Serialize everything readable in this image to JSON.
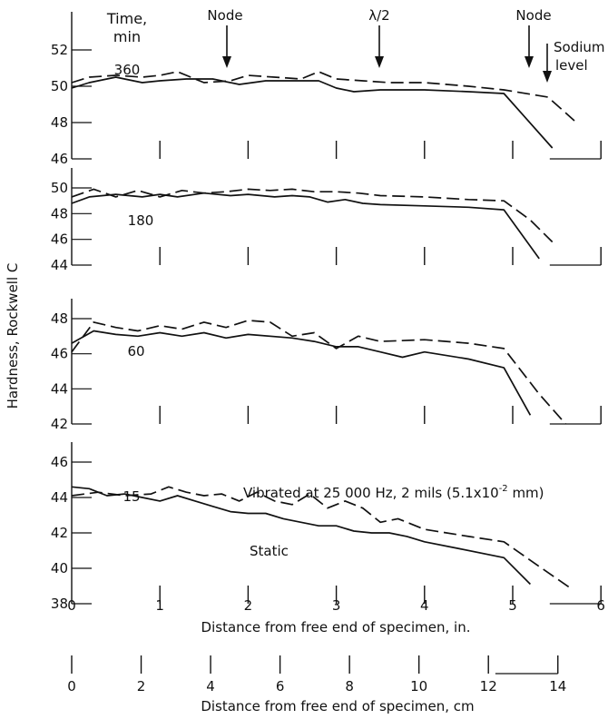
{
  "ylabel": "Hardness, Rockwell C",
  "xlabel_in": "Distance from free end of specimen, in.",
  "xlabel_cm": "Distance from free end of specimen, cm",
  "x_ticks_in": [
    "0",
    "1",
    "2",
    "3",
    "4",
    "5",
    "6"
  ],
  "x_ticks_cm": [
    "0",
    "2",
    "4",
    "6",
    "8",
    "10",
    "12",
    "14"
  ],
  "header": {
    "time_label_line1": "Time,",
    "time_label_line2": "min",
    "node_left": "Node",
    "half_wavelength": "λ/2",
    "node_right": "Node",
    "sodium_line1": "Sodium",
    "sodium_line2": "level"
  },
  "annotations": {
    "vibrated_prefix": "Vibrated at 25 000 Hz, 2 mils (5.1x10",
    "vibrated_exp": "-2",
    "vibrated_suffix": " mm)",
    "static": "Static"
  },
  "colors": {
    "ink": "#111111",
    "background": "#ffffff"
  },
  "chart_data": [
    {
      "type": "line",
      "time_label": "360",
      "ylim": [
        46,
        53
      ],
      "yticks": [
        "46",
        "48",
        "50",
        "52"
      ],
      "series": [
        {
          "name": "Static",
          "style": "solid",
          "x": [
            0,
            0.2,
            0.5,
            0.8,
            1.0,
            1.3,
            1.6,
            1.9,
            2.2,
            2.5,
            2.8,
            3.0,
            3.2,
            3.5,
            4.0,
            4.5,
            4.9,
            5.45
          ],
          "y": [
            49.9,
            50.2,
            50.5,
            50.2,
            50.3,
            50.4,
            50.4,
            50.1,
            50.3,
            50.3,
            50.3,
            49.9,
            49.7,
            49.8,
            49.8,
            49.7,
            49.6,
            46.6
          ]
        },
        {
          "name": "Vibrated at 25 000 Hz, 2 mils (5.1x10-2 mm)",
          "style": "dashed",
          "x": [
            0,
            0.2,
            0.5,
            0.8,
            1.0,
            1.2,
            1.5,
            1.8,
            2.0,
            2.3,
            2.6,
            2.8,
            3.0,
            3.3,
            3.6,
            4.0,
            4.5,
            4.9,
            5.4,
            5.7
          ],
          "y": [
            50.2,
            50.5,
            50.6,
            50.5,
            50.6,
            50.8,
            50.2,
            50.3,
            50.6,
            50.5,
            50.4,
            50.8,
            50.4,
            50.3,
            50.2,
            50.2,
            50.0,
            49.8,
            49.4,
            48.1
          ]
        }
      ]
    },
    {
      "type": "line",
      "time_label": "180",
      "ylim": [
        44,
        50
      ],
      "yticks": [
        "44",
        "46",
        "48",
        "50"
      ],
      "series": [
        {
          "name": "Static",
          "style": "solid",
          "x": [
            0,
            0.2,
            0.5,
            0.8,
            1.0,
            1.2,
            1.5,
            1.8,
            2.0,
            2.3,
            2.5,
            2.7,
            2.9,
            3.1,
            3.3,
            3.5,
            4.0,
            4.5,
            4.9,
            5.3
          ],
          "y": [
            48.8,
            49.3,
            49.5,
            49.3,
            49.5,
            49.3,
            49.6,
            49.4,
            49.5,
            49.3,
            49.4,
            49.3,
            48.9,
            49.1,
            48.8,
            48.7,
            48.6,
            48.5,
            48.3,
            44.5
          ]
        },
        {
          "name": "Vibrated at 25 000 Hz, 2 mils (5.1x10-2 mm)",
          "style": "dashed",
          "x": [
            0,
            0.25,
            0.5,
            0.75,
            1.0,
            1.25,
            1.5,
            1.75,
            2.0,
            2.25,
            2.5,
            2.75,
            3.0,
            3.25,
            3.5,
            4.0,
            4.5,
            4.9,
            5.2,
            5.45
          ],
          "y": [
            49.3,
            49.9,
            49.3,
            49.8,
            49.3,
            49.8,
            49.6,
            49.7,
            49.9,
            49.8,
            49.9,
            49.7,
            49.7,
            49.6,
            49.4,
            49.3,
            49.1,
            49.0,
            47.5,
            45.8
          ]
        }
      ]
    },
    {
      "type": "line",
      "time_label": "60",
      "ylim": [
        42,
        48
      ],
      "yticks": [
        "42",
        "44",
        "46",
        "48"
      ],
      "series": [
        {
          "name": "Static",
          "style": "solid",
          "x": [
            0,
            0.25,
            0.5,
            0.75,
            1.0,
            1.25,
            1.5,
            1.75,
            2.0,
            2.5,
            2.75,
            3.0,
            3.25,
            3.5,
            3.75,
            4.0,
            4.5,
            4.9,
            5.2
          ],
          "y": [
            46.6,
            47.3,
            47.1,
            47.0,
            47.2,
            47.0,
            47.2,
            46.9,
            47.1,
            46.9,
            46.7,
            46.4,
            46.4,
            46.1,
            45.8,
            46.1,
            45.7,
            45.2,
            42.5
          ]
        },
        {
          "name": "Vibrated at 25 000 Hz, 2 mils (5.1x10-2 mm)",
          "style": "dashed",
          "x": [
            0,
            0.25,
            0.5,
            0.75,
            1.0,
            1.25,
            1.5,
            1.75,
            2.0,
            2.25,
            2.5,
            2.75,
            3.0,
            3.25,
            3.5,
            4.0,
            4.5,
            4.9,
            5.3,
            5.6
          ],
          "y": [
            46.1,
            47.8,
            47.5,
            47.3,
            47.6,
            47.4,
            47.8,
            47.5,
            47.9,
            47.8,
            47.0,
            47.2,
            46.3,
            47.0,
            46.7,
            46.8,
            46.6,
            46.3,
            43.7,
            42.0
          ]
        }
      ]
    },
    {
      "type": "line",
      "time_label": "15",
      "ylim": [
        38,
        46
      ],
      "yticks": [
        "38",
        "40",
        "42",
        "44",
        "46"
      ],
      "series": [
        {
          "name": "Static",
          "style": "solid",
          "x": [
            0,
            0.2,
            0.4,
            0.6,
            0.8,
            1.0,
            1.2,
            1.4,
            1.6,
            1.8,
            2.0,
            2.2,
            2.4,
            2.6,
            2.8,
            3.0,
            3.2,
            3.4,
            3.6,
            3.8,
            4.0,
            4.4,
            4.9,
            5.2
          ],
          "y": [
            44.6,
            44.5,
            44.1,
            44.2,
            44.0,
            43.8,
            44.1,
            43.8,
            43.5,
            43.2,
            43.1,
            43.1,
            42.8,
            42.6,
            42.4,
            42.4,
            42.1,
            42.0,
            42.0,
            41.8,
            41.5,
            41.1,
            40.6,
            39.1
          ]
        },
        {
          "name": "Vibrated at 25 000 Hz, 2 mils (5.1x10-2 mm)",
          "style": "dashed",
          "x": [
            0,
            0.3,
            0.6,
            0.9,
            1.1,
            1.3,
            1.5,
            1.7,
            1.9,
            2.1,
            2.3,
            2.5,
            2.7,
            2.9,
            3.1,
            3.3,
            3.5,
            3.7,
            4.0,
            4.5,
            4.9,
            5.3,
            5.65
          ],
          "y": [
            44.1,
            44.3,
            44.1,
            44.2,
            44.6,
            44.3,
            44.1,
            44.2,
            43.8,
            44.3,
            43.8,
            43.6,
            44.2,
            43.4,
            43.8,
            43.4,
            42.6,
            42.8,
            42.2,
            41.8,
            41.5,
            40.1,
            38.9
          ]
        }
      ]
    }
  ]
}
